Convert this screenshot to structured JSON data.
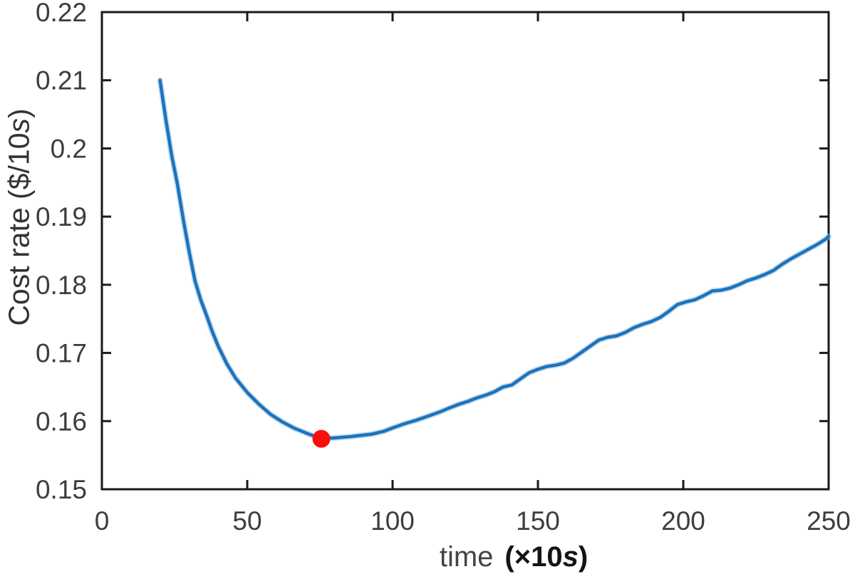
{
  "figure": {
    "background": "#ffffff",
    "axes_color": "#1a1a1a",
    "tick_label_color": "#3d3d3d"
  },
  "labels": {
    "xlabel": {
      "text": "time",
      "unit_prefix": "(×10",
      "unit_var": "s",
      "unit_close": ")"
    },
    "ylabel": {
      "prefix": "Cost rate ($/10",
      "var": "s",
      "suffix": ")"
    }
  },
  "chart_data": {
    "type": "line",
    "title": "",
    "xlabel": "time (×10s)",
    "ylabel": "Cost rate ($/10s)",
    "xlim": [
      0,
      250
    ],
    "ylim": [
      0.15,
      0.22
    ],
    "x_ticks": [
      0,
      50,
      100,
      150,
      200,
      250
    ],
    "x_tick_labels": [
      "0",
      "50",
      "100",
      "150",
      "200",
      "250"
    ],
    "y_ticks": [
      0.15,
      0.16,
      0.17,
      0.18,
      0.19,
      0.2,
      0.21,
      0.22
    ],
    "y_tick_labels": [
      "0.15",
      "0.16",
      "0.17",
      "0.18",
      "0.19",
      "0.2",
      "0.21",
      "0.22"
    ],
    "grid": false,
    "legend": null,
    "box": true,
    "series": [
      {
        "name": "cost-rate-curve",
        "color": "#1b73bc",
        "halo_color": "#8cb9dd",
        "points": [
          [
            20,
            0.21
          ],
          [
            22,
            0.2042
          ],
          [
            24,
            0.199
          ],
          [
            26,
            0.1947
          ],
          [
            28,
            0.1896
          ],
          [
            30,
            0.1849
          ],
          [
            32,
            0.1806
          ],
          [
            34,
            0.1778
          ],
          [
            36,
            0.1755
          ],
          [
            38,
            0.1731
          ],
          [
            40,
            0.171
          ],
          [
            43,
            0.1684
          ],
          [
            46,
            0.1663
          ],
          [
            50,
            0.1642
          ],
          [
            54,
            0.1625
          ],
          [
            58,
            0.161
          ],
          [
            62,
            0.1599
          ],
          [
            66,
            0.159
          ],
          [
            70,
            0.1583
          ],
          [
            73,
            0.1578
          ],
          [
            76,
            0.1576
          ],
          [
            79,
            0.1575
          ],
          [
            82,
            0.1576
          ],
          [
            85,
            0.1577
          ],
          [
            89,
            0.1579
          ],
          [
            93,
            0.1581
          ],
          [
            97,
            0.1585
          ],
          [
            100,
            0.159
          ],
          [
            104,
            0.1596
          ],
          [
            108,
            0.1601
          ],
          [
            112,
            0.1607
          ],
          [
            116,
            0.1613
          ],
          [
            120,
            0.162
          ],
          [
            123,
            0.1625
          ],
          [
            126,
            0.1629
          ],
          [
            129,
            0.1634
          ],
          [
            132,
            0.1638
          ],
          [
            135,
            0.1643
          ],
          [
            138,
            0.165
          ],
          [
            141,
            0.1653
          ],
          [
            144,
            0.1662
          ],
          [
            147,
            0.1671
          ],
          [
            150,
            0.1676
          ],
          [
            153,
            0.168
          ],
          [
            156,
            0.1682
          ],
          [
            159,
            0.1685
          ],
          [
            162,
            0.1692
          ],
          [
            165,
            0.1701
          ],
          [
            168,
            0.171
          ],
          [
            171,
            0.1719
          ],
          [
            174,
            0.1723
          ],
          [
            177,
            0.1725
          ],
          [
            180,
            0.173
          ],
          [
            183,
            0.1737
          ],
          [
            186,
            0.1742
          ],
          [
            189,
            0.1746
          ],
          [
            192,
            0.1752
          ],
          [
            195,
            0.1761
          ],
          [
            198,
            0.1771
          ],
          [
            201,
            0.1775
          ],
          [
            204,
            0.1778
          ],
          [
            207,
            0.1784
          ],
          [
            210,
            0.1791
          ],
          [
            213,
            0.1792
          ],
          [
            216,
            0.1795
          ],
          [
            219,
            0.18
          ],
          [
            222,
            0.1806
          ],
          [
            225,
            0.181
          ],
          [
            228,
            0.1815
          ],
          [
            231,
            0.1821
          ],
          [
            234,
            0.183
          ],
          [
            237,
            0.1838
          ],
          [
            240,
            0.1845
          ],
          [
            243,
            0.1852
          ],
          [
            246,
            0.1859
          ],
          [
            249,
            0.1867
          ],
          [
            250,
            0.1871
          ]
        ]
      }
    ],
    "markers": [
      {
        "name": "minimum-point",
        "x": 75.5,
        "y": 0.1574,
        "color": "#fb0d0d",
        "shape": "circle"
      }
    ]
  }
}
